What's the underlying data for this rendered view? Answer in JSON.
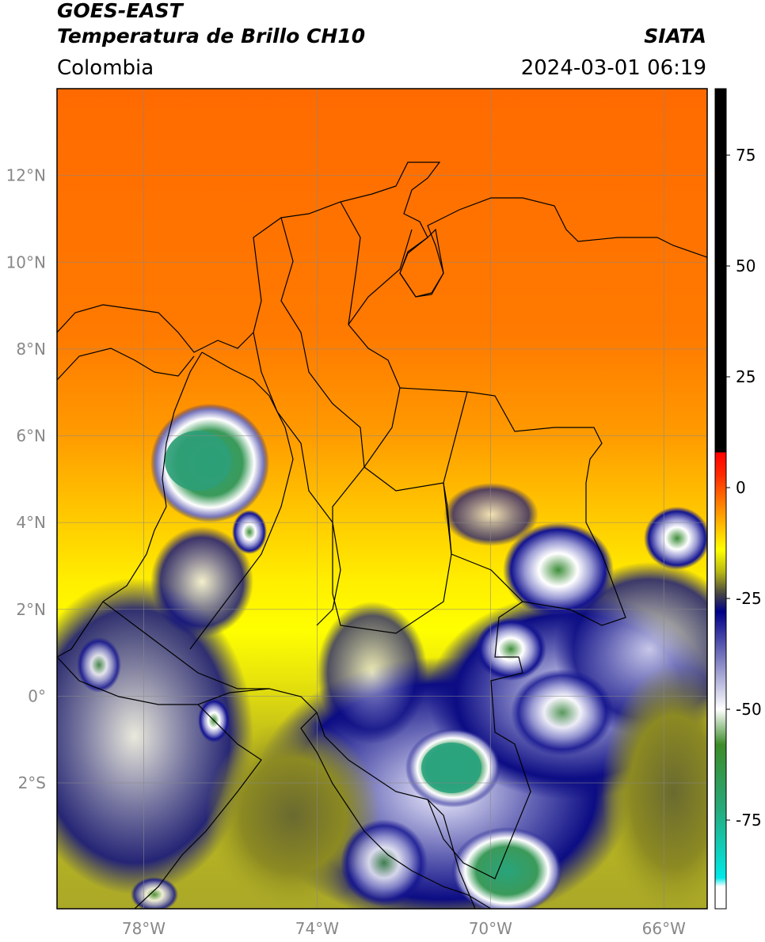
{
  "header": {
    "satellite": "GOES-EAST",
    "product": "Temperatura de Brillo CH10",
    "organization": "SIATA",
    "region": "Colombia",
    "datetime": "2024-03-01 06:19"
  },
  "map": {
    "lon_range": [
      -80,
      -65
    ],
    "lat_range": [
      -4.9,
      14
    ],
    "lat_ticks": [
      {
        "value": 12,
        "label": "12°N"
      },
      {
        "value": 10,
        "label": "10°N"
      },
      {
        "value": 8,
        "label": "8°N"
      },
      {
        "value": 6,
        "label": "6°N"
      },
      {
        "value": 4,
        "label": "4°N"
      },
      {
        "value": 2,
        "label": "2°N"
      },
      {
        "value": 0,
        "label": "0°"
      },
      {
        "value": -2,
        "label": "2°S"
      }
    ],
    "lon_ticks": [
      {
        "value": -78,
        "label": "78°W"
      },
      {
        "value": -74,
        "label": "74°W"
      },
      {
        "value": -70,
        "label": "70°W"
      },
      {
        "value": -66,
        "label": "66°W"
      }
    ],
    "gridlines": true
  },
  "colorbar": {
    "range": [
      -95,
      90
    ],
    "ticks": [
      {
        "value": 75,
        "label": "75"
      },
      {
        "value": 50,
        "label": "50"
      },
      {
        "value": 25,
        "label": "25"
      },
      {
        "value": 0,
        "label": "0"
      },
      {
        "value": -25,
        "label": "-25"
      },
      {
        "value": -50,
        "label": "-50"
      },
      {
        "value": -75,
        "label": "-75"
      }
    ],
    "stops": [
      {
        "value": 90,
        "color": "#000000"
      },
      {
        "value": 8,
        "color": "#000000"
      },
      {
        "value": 7.9,
        "color": "#ff0000"
      },
      {
        "value": 3,
        "color": "#ff2800"
      },
      {
        "value": -5,
        "color": "#ff9000"
      },
      {
        "value": -14,
        "color": "#ffff00"
      },
      {
        "value": -19,
        "color": "#b8b814"
      },
      {
        "value": -24,
        "color": "#444444"
      },
      {
        "value": -28,
        "color": "#000088"
      },
      {
        "value": -40,
        "color": "#8c8cc8"
      },
      {
        "value": -50,
        "color": "#ffffff"
      },
      {
        "value": -58,
        "color": "#3c8c28"
      },
      {
        "value": -72,
        "color": "#28a878"
      },
      {
        "value": -88,
        "color": "#00e8e8"
      },
      {
        "value": -90,
        "color": "#ffffff"
      },
      {
        "value": -95,
        "color": "#ffffff"
      }
    ]
  }
}
